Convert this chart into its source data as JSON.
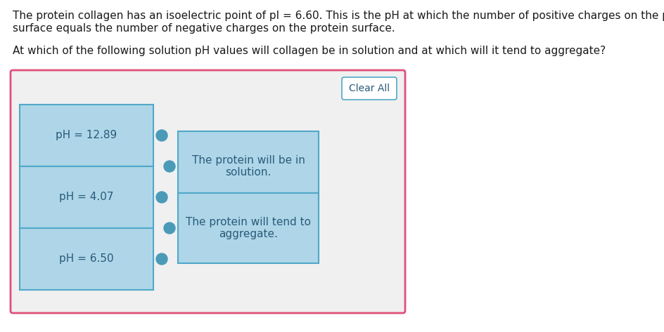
{
  "title_line1": "The protein collagen has an isoelectric point of pI = 6.60. This is the pH at which the number of positive charges on the protein",
  "title_line2": "surface equals the number of negative charges on the protein surface.",
  "question_text": "At which of the following solution pH values will collagen be in solution and at which will it tend to aggregate?",
  "ph_labels": [
    "pH = 12.89",
    "pH = 4.07",
    "pH = 6.50"
  ],
  "drop_targets": [
    "The protein will be in\nsolution.",
    "The protein will tend to\naggregate."
  ],
  "clear_all_text": "Clear All",
  "outer_bg": "#f0f0f0",
  "outer_border": "#e0507a",
  "cell_bg": "#aed6e8",
  "cell_border": "#50a8c8",
  "drop_bg": "#aed6e8",
  "drop_border": "#50a8c8",
  "text_color": "#2a5a7a",
  "body_text_color": "#1a1a1a",
  "clear_bg": "#ffffff",
  "clear_border": "#50a8c8",
  "dot_color": "#4a9ab8",
  "title_fontsize": 11,
  "label_fontsize": 11,
  "drop_fontsize": 11,
  "clear_fontsize": 10
}
